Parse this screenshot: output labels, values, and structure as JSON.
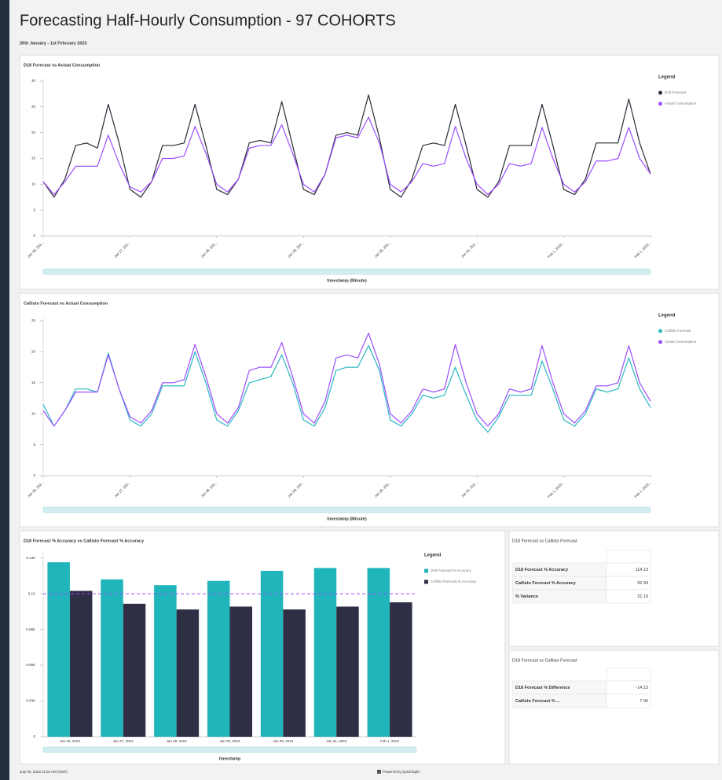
{
  "header": {
    "title": "Forecasting Half-Hourly Consumption - 97 COHORTS",
    "subtitle": "26th January - 1st February 2023"
  },
  "chart_data": [
    {
      "type": "line",
      "title": "D18 Forecast vs Actual Consumption",
      "legend_title": "Legend",
      "x_label": "timestamp (Minute)",
      "categories": [
        "Jan 26, 202...",
        null,
        null,
        null,
        null,
        null,
        null,
        null,
        "Jan 27, 202...",
        null,
        null,
        null,
        null,
        null,
        null,
        null,
        "Jan 28, 202...",
        null,
        null,
        null,
        null,
        null,
        null,
        null,
        "Jan 29, 202...",
        null,
        null,
        null,
        null,
        null,
        null,
        null,
        "Jan 30, 202...",
        null,
        null,
        null,
        null,
        null,
        null,
        null,
        "Jan 31, 202...",
        null,
        null,
        null,
        null,
        null,
        null,
        null,
        "Feb 1, 2023...",
        null,
        null,
        null,
        null,
        null,
        null,
        null,
        "Feb 1, 2023..."
      ],
      "series": [
        {
          "name": "D18 Forecast",
          "color": "#2b2b38",
          "values": [
            10.5,
            7.5,
            11,
            17.5,
            18,
            17,
            25.5,
            18,
            9,
            7.5,
            10.5,
            17.5,
            17.5,
            18,
            25.5,
            17.5,
            9,
            8,
            11,
            18,
            18.5,
            18,
            26,
            17.5,
            9,
            8,
            12,
            19.5,
            20,
            19.5,
            27.3,
            19,
            9,
            7.5,
            11,
            17.5,
            18,
            17.5,
            25.5,
            17.5,
            9,
            7.5,
            10.5,
            17.5,
            17.5,
            17.5,
            25.5,
            17.5,
            9,
            8,
            11,
            18,
            18,
            18,
            26.5,
            18,
            12
          ]
        },
        {
          "name": "Actual Consumption",
          "color": "#9b4dff",
          "values": [
            10.5,
            8,
            10.5,
            13.5,
            13.5,
            13.5,
            19.5,
            14,
            9.5,
            8.5,
            10.5,
            15,
            15,
            15.5,
            21.2,
            16,
            10,
            8.5,
            11,
            17,
            17.5,
            17.5,
            21.5,
            16,
            10,
            8.5,
            12,
            19,
            19.5,
            19,
            23,
            18,
            10,
            8.5,
            10.5,
            14,
            13.5,
            14,
            21.2,
            15,
            10,
            8,
            10,
            14,
            13.5,
            14,
            21,
            15,
            10,
            8.5,
            10.5,
            14.5,
            14.5,
            15,
            21,
            15,
            12
          ]
        }
      ],
      "ylim": [
        0,
        30
      ],
      "yticks": [
        0,
        5,
        10,
        15,
        20,
        25,
        30
      ],
      "grid": false
    },
    {
      "type": "line",
      "title": "Callisto Forecast vs Actual Consumption",
      "legend_title": "Legend",
      "x_label": "timestamp (Minute)",
      "categories": [
        "Jan 26, 202...",
        null,
        null,
        null,
        null,
        null,
        null,
        null,
        "Jan 27, 202...",
        null,
        null,
        null,
        null,
        null,
        null,
        null,
        "Jan 28, 202...",
        null,
        null,
        null,
        null,
        null,
        null,
        null,
        "Jan 29, 202...",
        null,
        null,
        null,
        null,
        null,
        null,
        null,
        "Jan 30, 202...",
        null,
        null,
        null,
        null,
        null,
        null,
        null,
        "Jan 31, 202...",
        null,
        null,
        null,
        null,
        null,
        null,
        null,
        "Feb 1, 2023...",
        null,
        null,
        null,
        null,
        null,
        null,
        null,
        "Feb 1, 2023..."
      ],
      "series": [
        {
          "name": "Callisto Forecast",
          "color": "#2ab7c2",
          "values": [
            11.5,
            8,
            10.5,
            14,
            14,
            13.5,
            19.8,
            14,
            9,
            8,
            10,
            14.5,
            14.5,
            14.5,
            20,
            15,
            9,
            8,
            10.5,
            15,
            15.5,
            16,
            19.5,
            15,
            9,
            8,
            11,
            17,
            17.5,
            17.5,
            21,
            17,
            9,
            8,
            10,
            13,
            12.5,
            13,
            17.5,
            13,
            9,
            7,
            9.5,
            13,
            13,
            13,
            18.5,
            14,
            9,
            8,
            10,
            14,
            13.5,
            14,
            19,
            14,
            11
          ]
        },
        {
          "name": "Actual Consumption",
          "color": "#9b4dff",
          "values": [
            10.5,
            8,
            10.5,
            13.5,
            13.5,
            13.5,
            19.5,
            14,
            9.5,
            8.5,
            10.5,
            15,
            15,
            15.5,
            21.2,
            16,
            10,
            8.5,
            11,
            17,
            17.5,
            17.5,
            21.5,
            16,
            10,
            8.5,
            12,
            19,
            19.5,
            19,
            23,
            18,
            10,
            8.5,
            10.5,
            14,
            13.5,
            14,
            21.2,
            15,
            10,
            8,
            10,
            14,
            13.5,
            14,
            21,
            15,
            10,
            8.5,
            10.5,
            14.5,
            14.5,
            15,
            21,
            15,
            12
          ]
        }
      ],
      "ylim": [
        0,
        25
      ],
      "yticks": [
        0,
        5,
        10,
        15,
        20,
        25
      ],
      "grid": false
    },
    {
      "type": "bar",
      "title": "D18 Forecast % Accuracy vs Callisto Forecast % Accuracy",
      "legend_title": "Legend",
      "x_label": "timestamp",
      "categories": [
        "Jan 26, 2023",
        "Jan 27, 2023",
        "Jan 28, 2023",
        "Jan 29, 2023",
        "Jan 30, 2023",
        "Jan 31, 2023",
        "Feb 1, 2023"
      ],
      "series": [
        {
          "name": "D18 Forecast % Accuracy",
          "color": "#20b5bb",
          "values": [
            122,
            110,
            106,
            109,
            116,
            118,
            118
          ]
        },
        {
          "name": "Callisto Forecast % Accuracy",
          "color": "#2e2f45",
          "values": [
            102,
            93,
            89,
            91,
            89,
            91,
            94
          ]
        }
      ],
      "ylim": [
        0,
        127
      ],
      "yticks": [
        0,
        {
          "value": 25,
          "label": "0.03K"
        },
        {
          "value": 50,
          "label": "0.05K"
        },
        {
          "value": 75,
          "label": "0.08K"
        },
        {
          "value": 100,
          "label": "0.1K"
        },
        {
          "value": 125,
          "label": "0.13K"
        }
      ],
      "reference_line": {
        "value": 100,
        "color": "#9b4dff"
      },
      "grid": false
    }
  ],
  "tables": [
    {
      "title": "D18 Forecast vs Callisto Forecast",
      "rows": [
        [
          "D18 Forecast % Accuracy",
          "114.13"
        ],
        [
          "Callisto Forecast % Accuracy",
          "92.94"
        ],
        [
          "% Variance",
          "21.19"
        ]
      ]
    },
    {
      "title": "D18 Forecast vs Callisto Forecast",
      "rows": [
        [
          "D18 Forecast % Difference",
          "-14.13"
        ],
        [
          "Callisto Forecast % ...",
          "7.06"
        ]
      ]
    }
  ],
  "footer": {
    "timestamp": "July 20, 2023 11:02 AM (GMT)",
    "powered": "Powered by QuickSight"
  }
}
